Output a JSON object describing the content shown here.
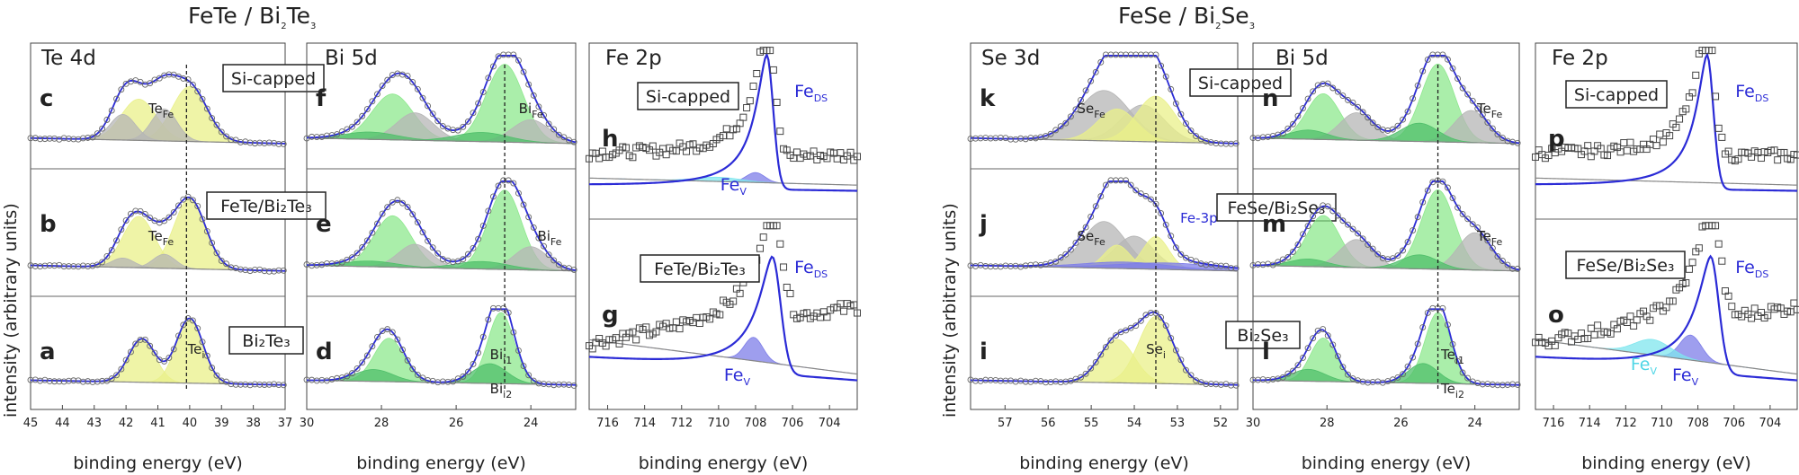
{
  "titles": {
    "fete": [
      "FeTe / Bi",
      "2",
      "Te",
      "3"
    ],
    "fese": [
      "FeSe / Bi",
      "2",
      "Se",
      "3"
    ]
  },
  "ylabel": "intensity (arbitrary units)",
  "colors": {
    "envelope": "#2b2bd6",
    "yellow": "#e9f08a",
    "green": "#8ee88e",
    "darkgreen": "#4fbf6a",
    "gray": "#b5b5b5",
    "blue": "#7d7de8",
    "cyan": "#7fe6ee",
    "data": "#555555"
  },
  "chart_data": [
    {
      "id": "te4d",
      "core": "Te 4d",
      "type": "line",
      "xlabel": "binding energy (eV)",
      "xlim": [
        45,
        37
      ],
      "ticks": [
        45,
        44,
        43,
        42,
        41,
        40,
        39,
        38,
        37
      ],
      "tick_labels": [
        "45",
        "44",
        "43",
        "42",
        "41",
        "40",
        "39",
        "38",
        "37"
      ],
      "dashed_x": 40.1,
      "panels": [
        {
          "label": "c",
          "box": "Si-capped",
          "peaks": [
            [
              41.6,
              0.55,
              0.45,
              "yellow"
            ],
            [
              40.0,
              0.55,
              0.6,
              "yellow"
            ],
            [
              40.8,
              0.4,
              0.35,
              "gray"
            ],
            [
              42.1,
              0.4,
              0.28,
              "gray"
            ]
          ],
          "comps": [
            {
              "t": "Te",
              "s": "Fe",
              "x": 40.9
            }
          ]
        },
        {
          "label": "b",
          "box": "FeTe/Bi₂Te₃",
          "peaks": [
            [
              41.6,
              0.5,
              0.55,
              "yellow"
            ],
            [
              40.0,
              0.5,
              0.75,
              "yellow"
            ],
            [
              40.8,
              0.35,
              0.15,
              "gray"
            ],
            [
              42.1,
              0.35,
              0.1,
              "gray"
            ]
          ],
          "comps": [
            {
              "t": "Te",
              "s": "Fe",
              "x": 40.9
            }
          ]
        },
        {
          "label": "a",
          "box": "Bi₂Te₃",
          "peaks": [
            [
              41.5,
              0.42,
              0.55,
              "yellow"
            ],
            [
              40.0,
              0.42,
              0.82,
              "yellow"
            ]
          ],
          "comps": [
            {
              "t": "Te",
              "s": "i",
              "x": 39.8
            }
          ]
        }
      ]
    },
    {
      "id": "bi5d_fete",
      "core": "Bi 5d",
      "type": "line",
      "xlabel": "binding energy (eV)",
      "xlim": [
        30,
        22.8
      ],
      "ticks": [
        30,
        28,
        26,
        24
      ],
      "tick_labels": [
        "30",
        "28",
        "26",
        "24"
      ],
      "dashed_x": 24.7,
      "panels": [
        {
          "label": "f",
          "box": "",
          "peaks": [
            [
              27.7,
              0.55,
              0.5,
              "green"
            ],
            [
              24.7,
              0.5,
              0.85,
              "green"
            ],
            [
              27.1,
              0.5,
              0.3,
              "gray"
            ],
            [
              24.0,
              0.5,
              0.25,
              "gray"
            ],
            [
              25.3,
              0.7,
              0.1,
              "darkgreen"
            ],
            [
              28.3,
              0.7,
              0.08,
              "darkgreen"
            ]
          ],
          "comps": [
            {
              "t": "Bi",
              "s": "Fe",
              "x": 24.0
            }
          ]
        },
        {
          "label": "e",
          "box": "",
          "peaks": [
            [
              27.7,
              0.5,
              0.55,
              "green"
            ],
            [
              24.7,
              0.45,
              0.85,
              "green"
            ],
            [
              27.1,
              0.45,
              0.25,
              "gray"
            ],
            [
              24.0,
              0.45,
              0.25,
              "gray"
            ],
            [
              25.3,
              0.7,
              0.08,
              "darkgreen"
            ],
            [
              28.3,
              0.7,
              0.06,
              "darkgreen"
            ]
          ],
          "comps": [
            {
              "t": "Bi",
              "s": "Fe",
              "x": 23.5
            }
          ]
        },
        {
          "label": "d",
          "box": "",
          "peaks": [
            [
              27.8,
              0.4,
              0.55,
              "green"
            ],
            [
              24.8,
              0.35,
              0.9,
              "green"
            ],
            [
              28.2,
              0.5,
              0.15,
              "darkgreen"
            ],
            [
              25.1,
              0.45,
              0.25,
              "darkgreen"
            ]
          ],
          "comps": [
            {
              "t": "Bi",
              "s": "i1",
              "x": 24.8
            },
            {
              "t": "Bi",
              "s": "i2",
              "x": 24.8
            }
          ]
        }
      ]
    },
    {
      "id": "fe2p_fete",
      "core": "Fe 2p",
      "type": "scatter",
      "xlabel": "binding energy (eV)",
      "xlim": [
        717,
        702.5
      ],
      "ticks": [
        716,
        714,
        712,
        710,
        708,
        706,
        704
      ],
      "tick_labels": [
        "716",
        "714",
        "712",
        "710",
        "708",
        "706",
        "704"
      ],
      "panels": [
        {
          "label": "h",
          "box": "Si-capped",
          "peaks": [
            [
              707.4,
              0.35,
              0.95,
              "env"
            ],
            [
              708.0,
              0.5,
              0.07,
              "blue"
            ],
            [
              710.0,
              1.2,
              0.03,
              "cyan"
            ]
          ],
          "comps": [
            {
              "t": "Fe",
              "s": "DS",
              "x": 705.0
            },
            {
              "t": "Fe",
              "s": "V",
              "x": 709.2
            }
          ]
        },
        {
          "label": "g",
          "box": "FeTe/Bi₂Te₃",
          "peaks": [
            [
              707.1,
              0.45,
              0.75,
              "env"
            ],
            [
              708.1,
              0.5,
              0.15,
              "blue"
            ]
          ],
          "comps": [
            {
              "t": "Fe",
              "s": "DS",
              "x": 705.0
            },
            {
              "t": "Fe",
              "s": "V",
              "x": 709.0
            }
          ]
        }
      ]
    },
    {
      "id": "se3d",
      "core": "Se 3d",
      "type": "line",
      "xlabel": "binding energy (eV)",
      "xlim": [
        57.8,
        51.6
      ],
      "ticks": [
        57,
        56,
        55,
        54,
        53,
        52
      ],
      "tick_labels": [
        "57",
        "56",
        "55",
        "54",
        "53",
        "52"
      ],
      "dashed_x": 53.5,
      "panels": [
        {
          "label": "k",
          "box": "Si-capped",
          "peaks": [
            [
              54.7,
              0.6,
              0.55,
              "gray"
            ],
            [
              53.8,
              0.5,
              0.4,
              "gray"
            ],
            [
              53.5,
              0.45,
              0.5,
              "yellow"
            ],
            [
              54.4,
              0.45,
              0.35,
              "yellow"
            ]
          ],
          "comps": [
            {
              "t": "Se",
              "s": "Fe",
              "x": 55.0
            }
          ]
        },
        {
          "label": "j",
          "box": "FeSe/Bi₂Se₃",
          "peaks": [
            [
              54.7,
              0.5,
              0.5,
              "gray"
            ],
            [
              54.0,
              0.45,
              0.35,
              "gray"
            ],
            [
              53.5,
              0.3,
              0.35,
              "yellow"
            ],
            [
              54.4,
              0.3,
              0.25,
              "yellow"
            ],
            [
              53.2,
              1.2,
              0.07,
              "blue"
            ],
            [
              54.2,
              1.0,
              0.07,
              "blue"
            ]
          ],
          "comps": [
            {
              "t": "Se",
              "s": "Fe",
              "x": 55.0
            },
            {
              "t": "Fe-3p",
              "s": "",
              "x": 52.5
            }
          ]
        },
        {
          "label": "i",
          "box": "Bi₂Se₃",
          "peaks": [
            [
              54.4,
              0.4,
              0.55,
              "yellow"
            ],
            [
              53.5,
              0.4,
              0.85,
              "yellow"
            ]
          ],
          "comps": [
            {
              "t": "Se",
              "s": "i",
              "x": 53.5
            }
          ]
        }
      ]
    },
    {
      "id": "bi5d_fese",
      "core": "Bi 5d",
      "type": "line",
      "xlabel": "binding energy (eV)",
      "xlim": [
        30,
        22.8
      ],
      "ticks": [
        30,
        28,
        26,
        24
      ],
      "tick_labels": [
        "30",
        "28",
        "26",
        "24"
      ],
      "dashed_x": 25.0,
      "panels": [
        {
          "label": "n",
          "box": "",
          "peaks": [
            [
              28.1,
              0.45,
              0.5,
              "green"
            ],
            [
              25.0,
              0.45,
              0.85,
              "green"
            ],
            [
              27.2,
              0.45,
              0.3,
              "gray"
            ],
            [
              24.1,
              0.45,
              0.35,
              "gray"
            ],
            [
              25.5,
              0.5,
              0.2,
              "darkgreen"
            ],
            [
              28.5,
              0.5,
              0.1,
              "darkgreen"
            ]
          ],
          "comps": [
            {
              "t": "Te",
              "s": "Fe",
              "x": 23.6
            }
          ]
        },
        {
          "label": "m",
          "box": "",
          "peaks": [
            [
              28.1,
              0.45,
              0.55,
              "green"
            ],
            [
              25.0,
              0.45,
              0.85,
              "green"
            ],
            [
              27.2,
              0.45,
              0.3,
              "gray"
            ],
            [
              24.0,
              0.45,
              0.4,
              "gray"
            ],
            [
              25.5,
              0.5,
              0.15,
              "darkgreen"
            ],
            [
              28.5,
              0.5,
              0.08,
              "darkgreen"
            ]
          ],
          "comps": [
            {
              "t": "Te",
              "s": "Fe",
              "x": 23.6
            }
          ]
        },
        {
          "label": "l",
          "box": "",
          "peaks": [
            [
              28.1,
              0.35,
              0.55,
              "green"
            ],
            [
              25.0,
              0.35,
              0.9,
              "green"
            ],
            [
              28.5,
              0.45,
              0.15,
              "darkgreen"
            ],
            [
              25.4,
              0.4,
              0.25,
              "darkgreen"
            ]
          ],
          "comps": [
            {
              "t": "Te",
              "s": "i1",
              "x": 24.6
            },
            {
              "t": "Te",
              "s": "i2",
              "x": 24.6
            }
          ]
        }
      ]
    },
    {
      "id": "fe2p_fese",
      "core": "Fe 2p",
      "type": "scatter",
      "xlabel": "binding energy (eV)",
      "xlim": [
        717,
        702.5
      ],
      "ticks": [
        716,
        714,
        712,
        710,
        708,
        706,
        704
      ],
      "tick_labels": [
        "716",
        "714",
        "712",
        "710",
        "708",
        "706",
        "704"
      ],
      "panels": [
        {
          "label": "p",
          "box": "Si-capped",
          "peaks": [
            [
              707.5,
              0.35,
              0.95,
              "env"
            ]
          ],
          "comps": [
            {
              "t": "Fe",
              "s": "DS",
              "x": 705.0
            }
          ]
        },
        {
          "label": "o",
          "box": "FeSe/Bi₂Se₃",
          "peaks": [
            [
              707.3,
              0.45,
              0.75,
              "env"
            ],
            [
              708.4,
              0.6,
              0.16,
              "blue"
            ],
            [
              710.5,
              1.0,
              0.1,
              "cyan"
            ]
          ],
          "comps": [
            {
              "t": "Fe",
              "s": "DS",
              "x": 705.0
            },
            {
              "t": "Fe",
              "s": "V",
              "x": 708.7
            },
            {
              "t": "Fe",
              "s": "V",
              "x": 711.0
            }
          ]
        }
      ]
    }
  ]
}
